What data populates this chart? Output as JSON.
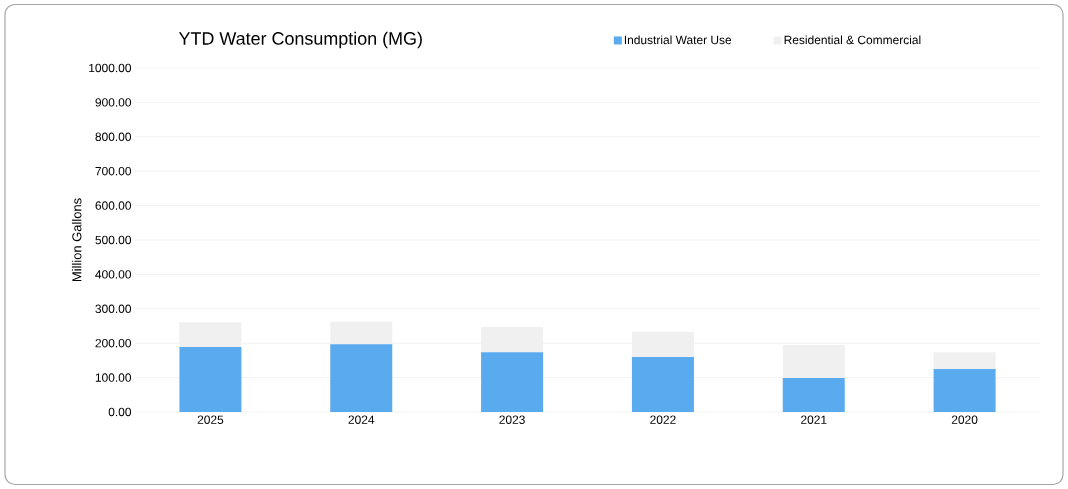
{
  "chart_data": {
    "type": "bar",
    "title": "YTD Water Consumption (MG)",
    "ylabel": "Million Gallons",
    "categories": [
      "2025",
      "2024",
      "2023",
      "2022",
      "2021",
      "2020"
    ],
    "series": [
      {
        "name": "Industrial Water Use",
        "color": "#5aaaf0",
        "values": [
          189,
          197,
          174,
          160,
          99,
          125
        ]
      },
      {
        "name": "Residential & Commercial",
        "color": "#f0f0f0",
        "values": [
          72,
          65,
          73,
          73,
          96,
          49
        ]
      }
    ],
    "stacked": true,
    "ylim": [
      0,
      1000
    ],
    "yticks": [
      {
        "value": 0,
        "label": "0.00"
      },
      {
        "value": 100,
        "label": "100.00"
      },
      {
        "value": 200,
        "label": "200.00"
      },
      {
        "value": 300,
        "label": "300.00"
      },
      {
        "value": 400,
        "label": "400.00"
      },
      {
        "value": 500,
        "label": "500.00"
      },
      {
        "value": 600,
        "label": "600.00"
      },
      {
        "value": 700,
        "label": "700.00"
      },
      {
        "value": 800,
        "label": "800.00"
      },
      {
        "value": 900,
        "label": "900.00"
      },
      {
        "value": 1000,
        "label": "1000.00"
      }
    ],
    "grid": "y",
    "legend": "top"
  }
}
